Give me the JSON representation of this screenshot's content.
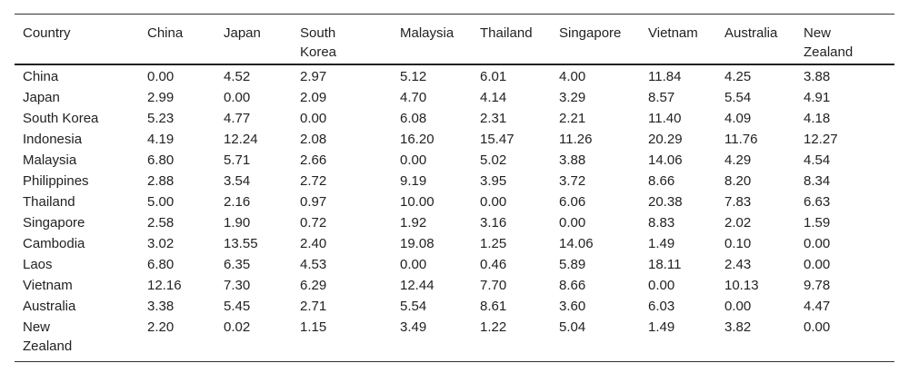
{
  "table": {
    "header": [
      "Country",
      "China",
      "Japan",
      "South Korea",
      "Malaysia",
      "Thailand",
      "Singapore",
      "Vietnam",
      "Australia",
      "New Zealand"
    ],
    "rows": [
      [
        "China",
        "0.00",
        "4.52",
        "2.97",
        "5.12",
        "6.01",
        "4.00",
        "11.84",
        "4.25",
        "3.88"
      ],
      [
        "Japan",
        "2.99",
        "0.00",
        "2.09",
        "4.70",
        "4.14",
        "3.29",
        "8.57",
        "5.54",
        "4.91"
      ],
      [
        "South Korea",
        "5.23",
        "4.77",
        "0.00",
        "6.08",
        "2.31",
        "2.21",
        "11.40",
        "4.09",
        "4.18"
      ],
      [
        "Indonesia",
        "4.19",
        "12.24",
        "2.08",
        "16.20",
        "15.47",
        "11.26",
        "20.29",
        "11.76",
        "12.27"
      ],
      [
        "Malaysia",
        "6.80",
        "5.71",
        "2.66",
        "0.00",
        "5.02",
        "3.88",
        "14.06",
        "4.29",
        "4.54"
      ],
      [
        "Philippines",
        "2.88",
        "3.54",
        "2.72",
        "9.19",
        "3.95",
        "3.72",
        "8.66",
        "8.20",
        "8.34"
      ],
      [
        "Thailand",
        "5.00",
        "2.16",
        "0.97",
        "10.00",
        "0.00",
        "6.06",
        "20.38",
        "7.83",
        "6.63"
      ],
      [
        "Singapore",
        "2.58",
        "1.90",
        "0.72",
        "1.92",
        "3.16",
        "0.00",
        "8.83",
        "2.02",
        "1.59"
      ],
      [
        "Cambodia",
        "3.02",
        "13.55",
        "2.40",
        "19.08",
        "1.25",
        "14.06",
        "1.49",
        "0.10",
        "0.00"
      ],
      [
        "Laos",
        "6.80",
        "6.35",
        "4.53",
        "0.00",
        "0.46",
        "5.89",
        "18.11",
        "2.43",
        "0.00"
      ],
      [
        "Vietnam",
        "12.16",
        "7.30",
        "6.29",
        "12.44",
        "7.70",
        "8.66",
        "0.00",
        "10.13",
        "9.78"
      ],
      [
        "Australia",
        "3.38",
        "5.45",
        "2.71",
        "5.54",
        "8.61",
        "3.60",
        "6.03",
        "0.00",
        "4.47"
      ],
      [
        "New Zealand",
        "2.20",
        "0.02",
        "1.15",
        "3.49",
        "1.22",
        "5.04",
        "1.49",
        "3.82",
        "0.00"
      ]
    ]
  }
}
